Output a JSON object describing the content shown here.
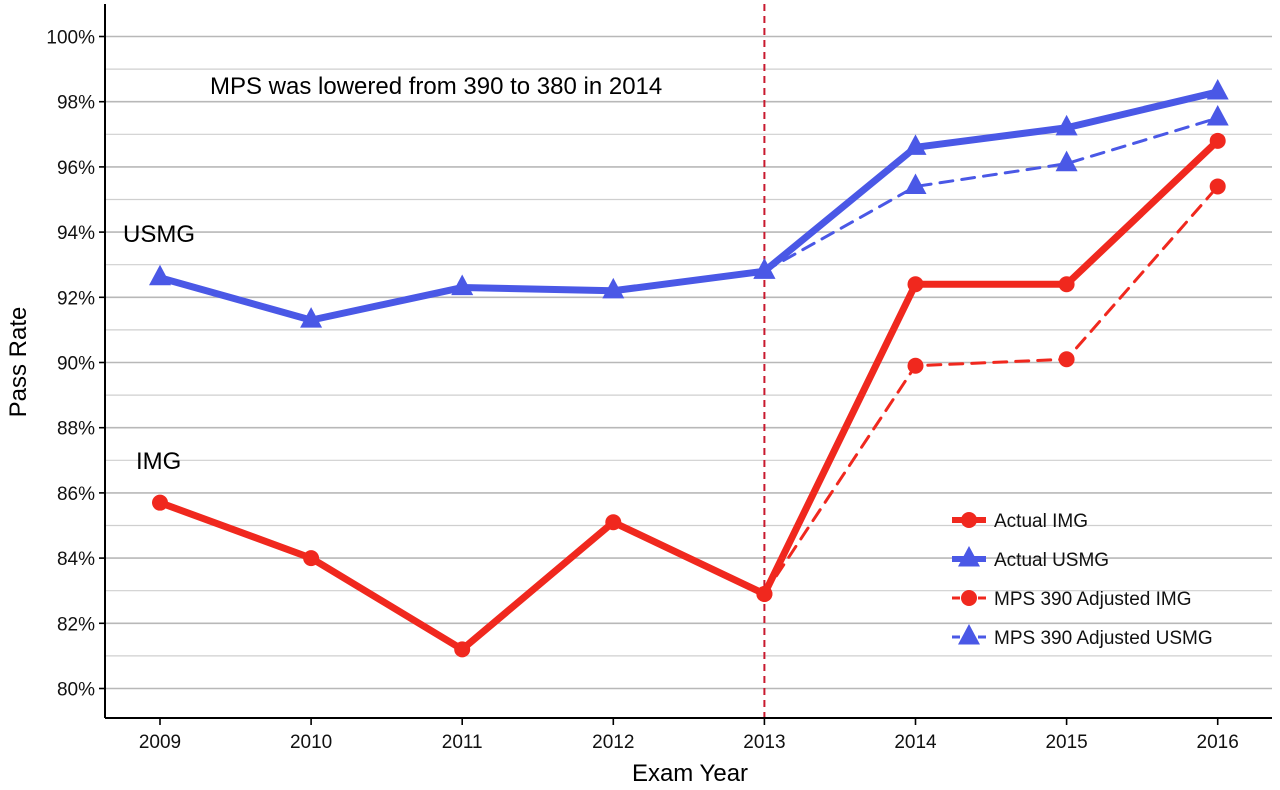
{
  "chart_data": {
    "type": "line",
    "xlabel": "Exam Year",
    "ylabel": "Pass Rate",
    "x": [
      2009,
      2010,
      2011,
      2012,
      2013,
      2014,
      2015,
      2016
    ],
    "x_tick_labels": [
      "2009",
      "2010",
      "2011",
      "2012",
      "2013",
      "2014",
      "2015",
      "2016"
    ],
    "ylim": [
      79.5,
      100.5
    ],
    "y_ticks": [
      80,
      82,
      84,
      86,
      88,
      90,
      92,
      94,
      96,
      98,
      100
    ],
    "y_tick_labels": [
      "80%",
      "82%",
      "84%",
      "86%",
      "88%",
      "90%",
      "92%",
      "94%",
      "96%",
      "98%",
      "100%"
    ],
    "grid": "horizontal",
    "legend_position": "bottom-right",
    "reference_line": {
      "x": 2013,
      "style": "dashed",
      "color": "#c8192e"
    },
    "annotations": [
      {
        "text": "MPS was lowered from 390 to 380 in 2014"
      },
      {
        "text": "USMG"
      },
      {
        "text": "IMG"
      }
    ],
    "series": [
      {
        "name": "Actual IMG",
        "color": "#f0281e",
        "marker": "circle",
        "line": "solid",
        "x": [
          2009,
          2010,
          2011,
          2012,
          2013,
          2014,
          2015,
          2016
        ],
        "values": [
          85.7,
          84.0,
          81.2,
          85.1,
          82.9,
          92.4,
          92.4,
          96.8
        ]
      },
      {
        "name": "Actual USMG",
        "color": "#4a58e6",
        "marker": "triangle",
        "line": "solid",
        "x": [
          2009,
          2010,
          2011,
          2012,
          2013,
          2014,
          2015,
          2016
        ],
        "values": [
          92.6,
          91.3,
          92.3,
          92.2,
          92.8,
          96.6,
          97.2,
          98.3
        ]
      },
      {
        "name": "MPS 390 Adjusted IMG",
        "color": "#f0281e",
        "marker": "circle",
        "line": "dashed",
        "x": [
          2013,
          2014,
          2015,
          2016
        ],
        "values": [
          82.9,
          89.9,
          90.1,
          95.4
        ]
      },
      {
        "name": "MPS 390 Adjusted USMG",
        "color": "#4a58e6",
        "marker": "triangle",
        "line": "dashed",
        "x": [
          2013,
          2014,
          2015,
          2016
        ],
        "values": [
          92.8,
          95.4,
          96.1,
          97.5
        ]
      }
    ]
  }
}
